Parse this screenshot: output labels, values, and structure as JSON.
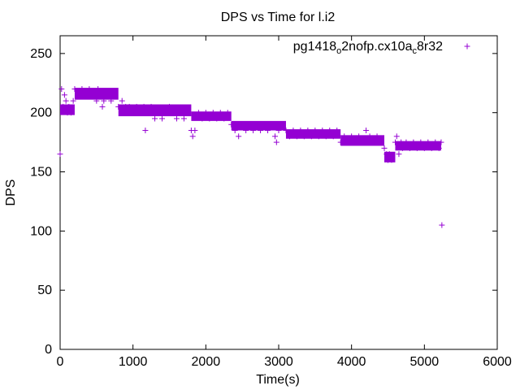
{
  "chart_data": {
    "type": "scatter",
    "title": "DPS vs Time for l.i2",
    "xlabel": "Time(s)",
    "ylabel": "DPS",
    "xlim": [
      0,
      6000
    ],
    "ylim": [
      0,
      265
    ],
    "xticks": [
      0,
      1000,
      2000,
      3000,
      4000,
      5000,
      6000
    ],
    "yticks": [
      0,
      50,
      100,
      150,
      200,
      250
    ],
    "grid": false,
    "legend_position": "top-right",
    "legend": {
      "base": "pg1418",
      "sub1": "o",
      "mid": "2nofp.cx10a",
      "sub2": "c",
      "tail": "8r32"
    },
    "marker": "+",
    "color": "#9400d3",
    "series": [
      {
        "points": [
          [
            0,
            165
          ],
          [
            20,
            220
          ],
          [
            40,
            205
          ],
          [
            60,
            215
          ],
          [
            80,
            210
          ],
          [
            100,
            200
          ],
          [
            120,
            205
          ],
          [
            150,
            200
          ],
          [
            180,
            210
          ],
          [
            200,
            220
          ],
          [
            250,
            215
          ],
          [
            300,
            220
          ],
          [
            350,
            215
          ],
          [
            400,
            220
          ],
          [
            450,
            215
          ],
          [
            500,
            210
          ],
          [
            520,
            220
          ],
          [
            550,
            215
          ],
          [
            580,
            205
          ],
          [
            600,
            210
          ],
          [
            650,
            215
          ],
          [
            700,
            210
          ],
          [
            750,
            215
          ],
          [
            800,
            205
          ],
          [
            850,
            210
          ],
          [
            900,
            205
          ],
          [
            950,
            205
          ],
          [
            1000,
            200
          ],
          [
            1050,
            205
          ],
          [
            1100,
            200
          ],
          [
            1150,
            205
          ],
          [
            1170,
            185
          ],
          [
            1200,
            200
          ],
          [
            1250,
            205
          ],
          [
            1300,
            195
          ],
          [
            1350,
            200
          ],
          [
            1400,
            195
          ],
          [
            1450,
            200
          ],
          [
            1500,
            205
          ],
          [
            1550,
            200
          ],
          [
            1600,
            195
          ],
          [
            1650,
            200
          ],
          [
            1700,
            195
          ],
          [
            1750,
            200
          ],
          [
            1800,
            185
          ],
          [
            1820,
            180
          ],
          [
            1850,
            185
          ],
          [
            1900,
            200
          ],
          [
            1950,
            195
          ],
          [
            2000,
            200
          ],
          [
            2050,
            195
          ],
          [
            2100,
            200
          ],
          [
            2150,
            195
          ],
          [
            2200,
            200
          ],
          [
            2250,
            195
          ],
          [
            2300,
            200
          ],
          [
            2350,
            190
          ],
          [
            2400,
            185
          ],
          [
            2450,
            180
          ],
          [
            2500,
            190
          ],
          [
            2550,
            185
          ],
          [
            2600,
            190
          ],
          [
            2650,
            185
          ],
          [
            2700,
            190
          ],
          [
            2750,
            185
          ],
          [
            2800,
            190
          ],
          [
            2850,
            185
          ],
          [
            2900,
            190
          ],
          [
            2950,
            180
          ],
          [
            2970,
            175
          ],
          [
            3000,
            185
          ],
          [
            3050,
            190
          ],
          [
            3100,
            185
          ],
          [
            3150,
            180
          ],
          [
            3200,
            185
          ],
          [
            3250,
            180
          ],
          [
            3300,
            185
          ],
          [
            3350,
            180
          ],
          [
            3400,
            185
          ],
          [
            3450,
            180
          ],
          [
            3500,
            185
          ],
          [
            3550,
            180
          ],
          [
            3600,
            185
          ],
          [
            3650,
            180
          ],
          [
            3700,
            185
          ],
          [
            3750,
            180
          ],
          [
            3800,
            185
          ],
          [
            3850,
            175
          ],
          [
            3900,
            180
          ],
          [
            3950,
            175
          ],
          [
            4000,
            180
          ],
          [
            4050,
            175
          ],
          [
            4100,
            180
          ],
          [
            4150,
            175
          ],
          [
            4200,
            185
          ],
          [
            4250,
            180
          ],
          [
            4300,
            175
          ],
          [
            4350,
            180
          ],
          [
            4400,
            175
          ],
          [
            4450,
            170
          ],
          [
            4480,
            165
          ],
          [
            4500,
            160
          ],
          [
            4520,
            165
          ],
          [
            4550,
            160
          ],
          [
            4600,
            175
          ],
          [
            4620,
            180
          ],
          [
            4650,
            165
          ],
          [
            4680,
            175
          ],
          [
            4700,
            170
          ],
          [
            4750,
            175
          ],
          [
            4800,
            170
          ],
          [
            4850,
            175
          ],
          [
            4900,
            170
          ],
          [
            4950,
            175
          ],
          [
            5000,
            170
          ],
          [
            5050,
            175
          ],
          [
            5100,
            170
          ],
          [
            5150,
            175
          ],
          [
            5200,
            170
          ],
          [
            5230,
            175
          ],
          [
            5240,
            105
          ]
        ]
      }
    ],
    "bands": [
      {
        "x0": 0,
        "x1": 200,
        "y0": 198,
        "y1": 207
      },
      {
        "x0": 200,
        "x1": 800,
        "y0": 211,
        "y1": 221
      },
      {
        "x0": 800,
        "x1": 1800,
        "y0": 197,
        "y1": 207
      },
      {
        "x0": 1800,
        "x1": 2350,
        "y0": 193,
        "y1": 201
      },
      {
        "x0": 2350,
        "x1": 3100,
        "y0": 185,
        "y1": 193
      },
      {
        "x0": 3100,
        "x1": 3850,
        "y0": 178,
        "y1": 186
      },
      {
        "x0": 3850,
        "x1": 4450,
        "y0": 172,
        "y1": 181
      },
      {
        "x0": 4450,
        "x1": 4600,
        "y0": 158,
        "y1": 167
      },
      {
        "x0": 4600,
        "x1": 5230,
        "y0": 168,
        "y1": 176
      }
    ]
  }
}
